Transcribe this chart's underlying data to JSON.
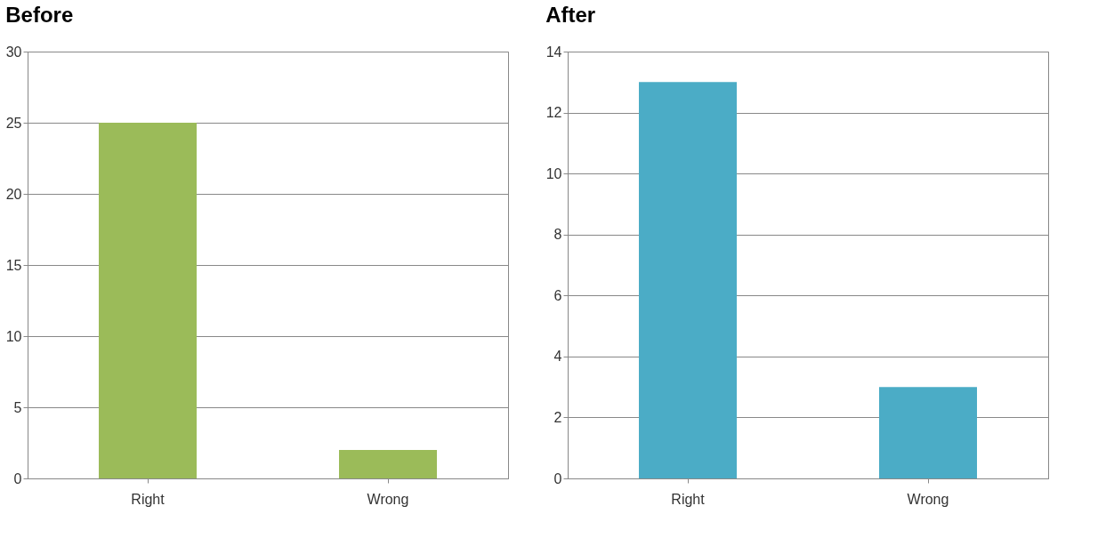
{
  "chart_data": [
    {
      "type": "bar",
      "title": "Before",
      "categories": [
        "Right",
        "Wrong"
      ],
      "values": [
        25,
        2
      ],
      "color": "#9bbb59",
      "ylim": [
        0,
        30
      ],
      "yticks": [
        0,
        5,
        10,
        15,
        20,
        25,
        30
      ],
      "grid": "y"
    },
    {
      "type": "bar",
      "title": "After",
      "categories": [
        "Right",
        "Wrong"
      ],
      "values": [
        13,
        3
      ],
      "color": "#4bacc6",
      "ylim": [
        0,
        14
      ],
      "yticks": [
        0,
        2,
        4,
        6,
        8,
        10,
        12,
        14
      ],
      "grid": "y"
    }
  ]
}
